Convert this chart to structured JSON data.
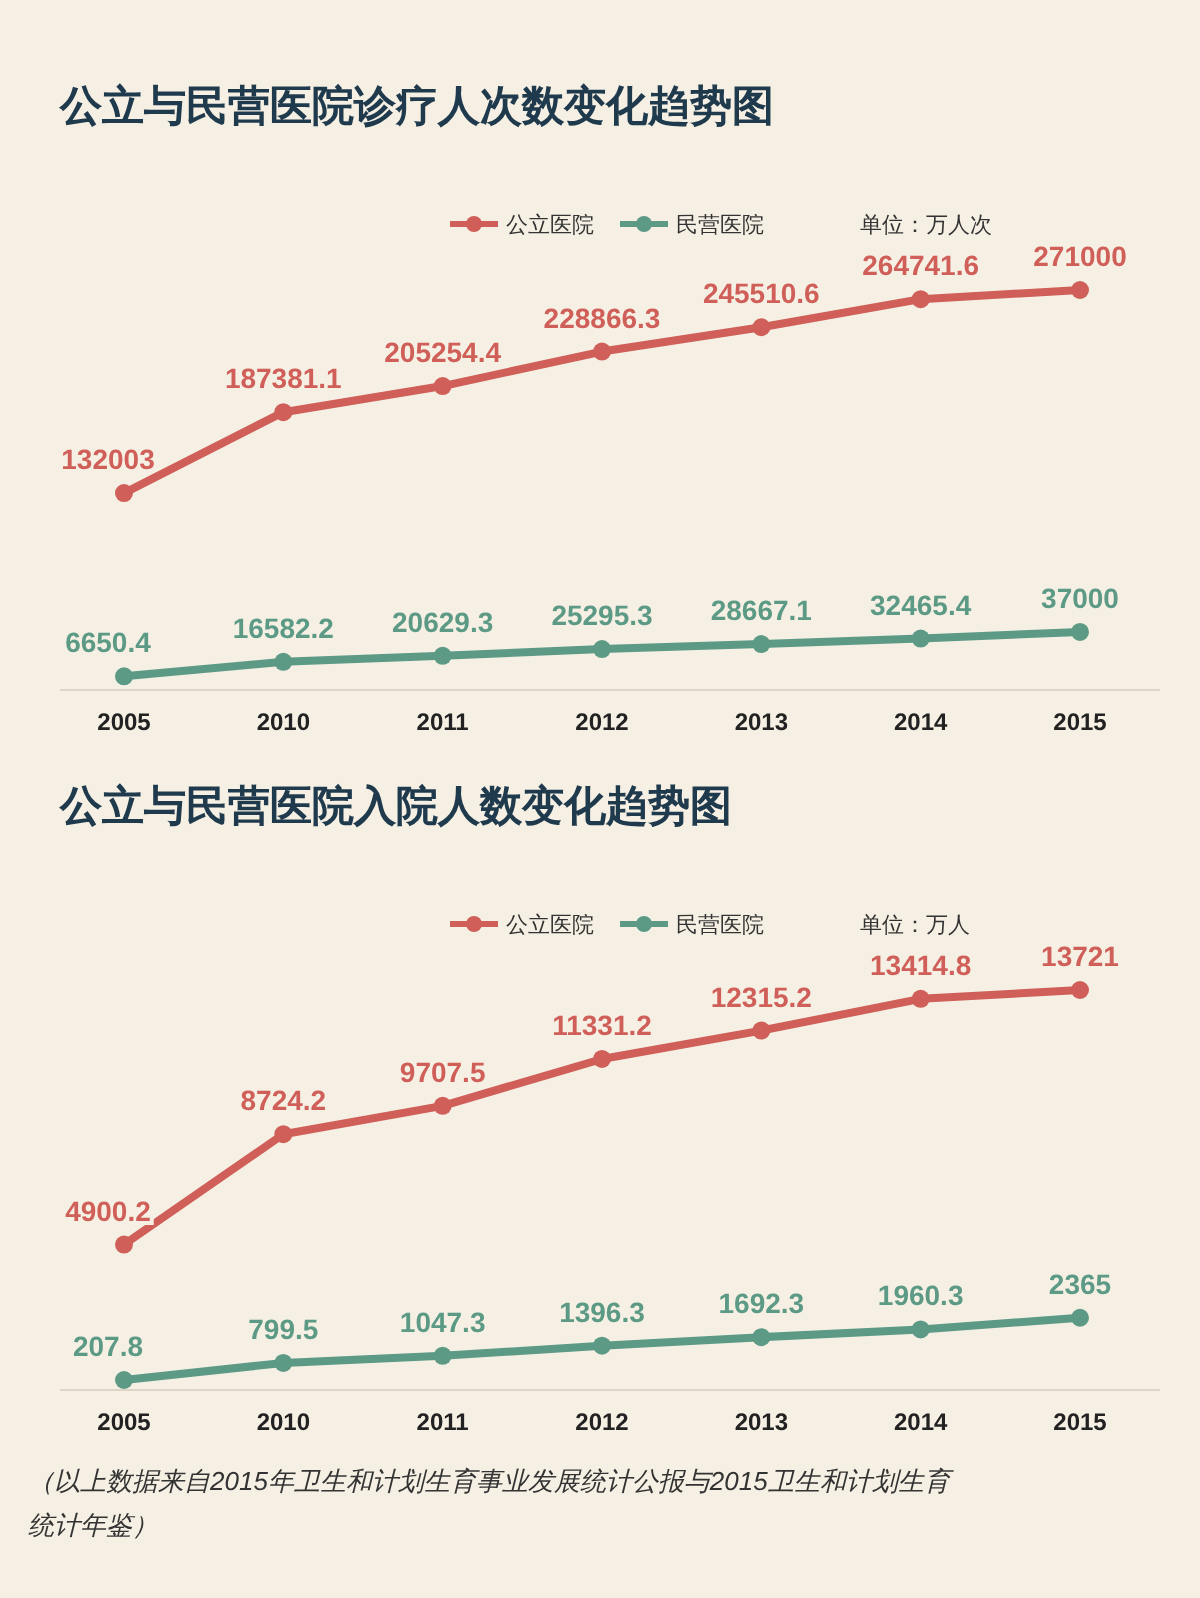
{
  "chart_data": [
    {
      "type": "line",
      "title": "公立与民营医院诊疗人次数变化趋势图",
      "categories": [
        "2005",
        "2010",
        "2011",
        "2012",
        "2013",
        "2014",
        "2015"
      ],
      "series": [
        {
          "name": "公立医院",
          "color": "#cf5f58",
          "values": [
            132003,
            187381.1,
            205254.4,
            228866.3,
            245510.6,
            264741.6,
            271000
          ]
        },
        {
          "name": "民营医院",
          "color": "#5c9a86",
          "values": [
            6650.4,
            16582.2,
            20629.3,
            25295.3,
            28667.1,
            32465.4,
            37000
          ]
        }
      ],
      "data_labels": true,
      "marker": "circle",
      "legend": "top",
      "annotations": [
        "单位：万人次"
      ]
    },
    {
      "type": "line",
      "title": "公立与民营医院入院人数变化趋势图",
      "categories": [
        "2005",
        "2010",
        "2011",
        "2012",
        "2013",
        "2014",
        "2015"
      ],
      "series": [
        {
          "name": "公立医院",
          "color": "#cf5f58",
          "values": [
            4900.2,
            8724.2,
            9707.5,
            11331.2,
            12315.2,
            13414.8,
            13721
          ]
        },
        {
          "name": "民营医院",
          "color": "#5c9a86",
          "values": [
            207.8,
            799.5,
            1047.3,
            1396.3,
            1692.3,
            1960.3,
            2365
          ]
        }
      ],
      "data_labels": true,
      "marker": "circle",
      "legend": "top",
      "annotations": [
        "单位：万人",
        "（以上数据来自2015年卫生和计划生育事业发展统计公报与2015卫生和计划生育统计年鉴）"
      ]
    }
  ]
}
